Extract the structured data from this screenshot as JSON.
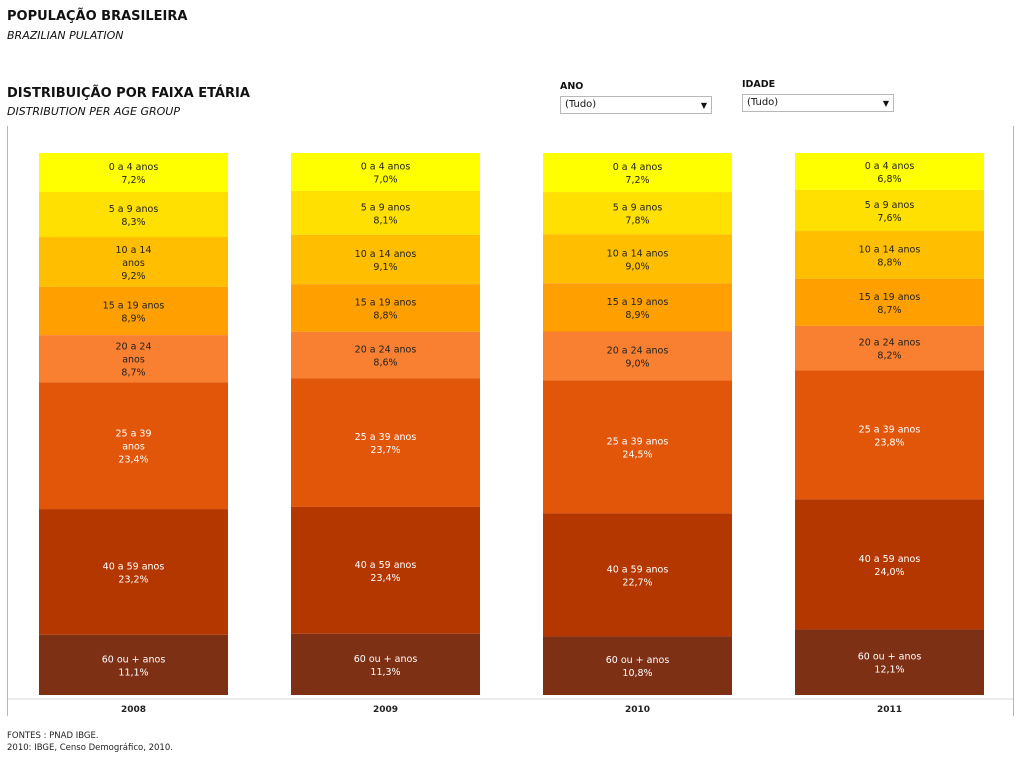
{
  "page": {
    "title": "POPULAÇÃO BRASILEIRA",
    "subtitle": "BRAZILIAN PULATION"
  },
  "chart_header": {
    "title": "DISTRIBUIÇÃO POR FAIXA ETÁRIA",
    "subtitle": "DISTRIBUTION PER AGE GROUP"
  },
  "filters": {
    "ano": {
      "label": "ANO",
      "value": "(Tudo)"
    },
    "idade": {
      "label": "IDADE",
      "value": "(Tudo)"
    }
  },
  "footer": {
    "line1": "FONTES :  PNAD IBGE.",
    "line2": "2010: IBGE, Censo Demográfico, 2010."
  },
  "chart_data": {
    "type": "bar",
    "stacked": true,
    "normalized_percent": true,
    "categories": [
      "2008",
      "2009",
      "2010",
      "2011"
    ],
    "series": [
      {
        "name": "0 a 4 anos",
        "color": "#FFFF00",
        "text_color": "#222222",
        "values": [
          7.2,
          7.0,
          7.2,
          6.8
        ],
        "labels": [
          "7,2%",
          "7,0%",
          "7,2%",
          "6,8%"
        ]
      },
      {
        "name": "5 a 9 anos",
        "color": "#FFE000",
        "text_color": "#222222",
        "values": [
          8.3,
          8.1,
          7.8,
          7.6
        ],
        "labels": [
          "8,3%",
          "8,1%",
          "7,8%",
          "7,6%"
        ]
      },
      {
        "name": "10 a 14 anos",
        "color": "#FFBF00",
        "text_color": "#222222",
        "values": [
          9.2,
          9.1,
          9.0,
          8.8
        ],
        "labels": [
          "9,2%",
          "9,1%",
          "9,0%",
          "8,8%"
        ]
      },
      {
        "name": "15 a 19 anos",
        "color": "#FFA000",
        "text_color": "#222222",
        "values": [
          8.9,
          8.8,
          8.9,
          8.7
        ],
        "labels": [
          "8,9%",
          "8,8%",
          "8,9%",
          "8,7%"
        ]
      },
      {
        "name": "20 a 24 anos",
        "color": "#F98030",
        "text_color": "#222222",
        "values": [
          8.7,
          8.6,
          9.0,
          8.2
        ],
        "labels": [
          "8,7%",
          "8,6%",
          "9,0%",
          "8,2%"
        ]
      },
      {
        "name": "25 a 39 anos",
        "color": "#E2560A",
        "text_color": "#ffffff",
        "values": [
          23.4,
          23.7,
          24.5,
          23.8
        ],
        "labels": [
          "23,4%",
          "23,7%",
          "24,5%",
          "23,8%"
        ]
      },
      {
        "name": "40 a 59 anos",
        "color": "#B53700",
        "text_color": "#ffffff",
        "values": [
          23.2,
          23.4,
          22.7,
          24.0
        ],
        "labels": [
          "23,2%",
          "23,4%",
          "22,7%",
          "24,0%"
        ]
      },
      {
        "name": "60 ou + anos",
        "color": "#7E3015",
        "text_color": "#ffffff",
        "values": [
          11.1,
          11.3,
          10.8,
          12.1
        ],
        "labels": [
          "11,1%",
          "11,3%",
          "10,8%",
          "12,1%"
        ]
      }
    ],
    "wrapped_labels": {
      "2008": {
        "10 a 14 anos": [
          "10 a 14",
          "anos"
        ],
        "20 a 24 anos": [
          "20 a 24",
          "anos"
        ],
        "25 a 39 anos": [
          "25 a 39",
          "anos"
        ]
      }
    },
    "ylim": [
      0,
      100
    ],
    "grid": false,
    "legend": "none"
  }
}
